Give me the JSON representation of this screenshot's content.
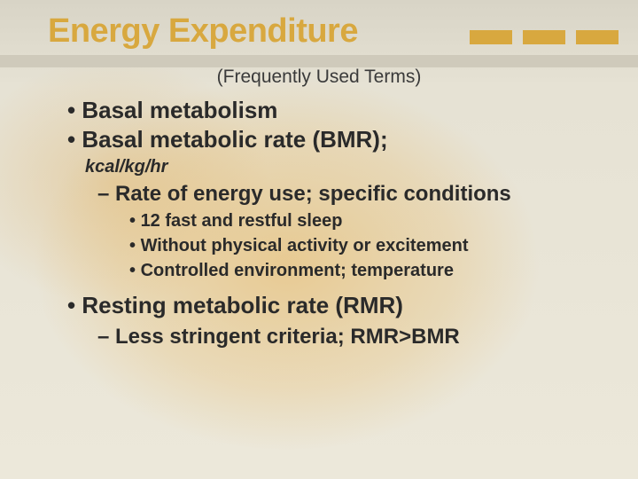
{
  "colors": {
    "accent": "#d8a83f",
    "band": "#cfcabb",
    "text": "#2a2a2a",
    "bg_base": "#e8e4d8"
  },
  "typography": {
    "title_fontsize": 38,
    "subtitle_fontsize": 21,
    "l1_fontsize": 26,
    "l2_fontsize": 24,
    "l3_fontsize": 20,
    "kcal_fontsize": 20,
    "body_family": "Verdana",
    "title_family": "Arial Narrow"
  },
  "title": "Energy Expenditure",
  "subtitle": "(Frequently Used Terms)",
  "bullets": {
    "b1": "Basal metabolism",
    "b2": "Basal metabolic rate (BMR);",
    "b2_unit": "kcal/kg/hr",
    "b2_sub": "Rate of energy use; specific conditions",
    "b2_sub_items": {
      "i1": "12 fast and restful sleep",
      "i2": "Without physical activity or excitement",
      "i3": "Controlled environment; temperature"
    },
    "b3": "Resting metabolic rate (RMR)",
    "b3_sub": "Less stringent criteria; RMR>BMR"
  }
}
